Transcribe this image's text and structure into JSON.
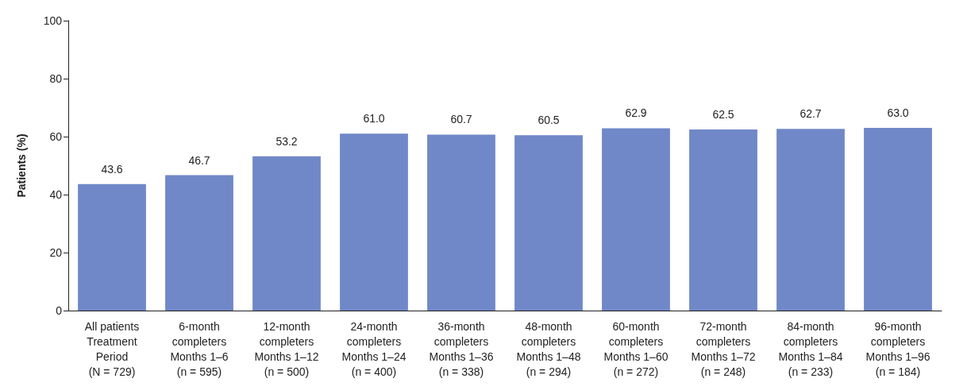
{
  "chart_data": {
    "type": "bar",
    "ylabel": "Patients (%)",
    "categories": [
      "All patients\nTreatment\nPeriod\n(N = 729)",
      "6-month\ncompleters\nMonths 1–6\n(n = 595)",
      "12-month\ncompleters\nMonths 1–12\n(n = 500)",
      "24-month\ncompleters\nMonths 1–24\n(n = 400)",
      "36-month\ncompleters\nMonths 1–36\n(n = 338)",
      "48-month\ncompleters\nMonths 1–48\n(n = 294)",
      "60-month\ncompleters\nMonths 1–60\n(n = 272)",
      "72-month\ncompleters\nMonths 1–72\n(n = 248)",
      "84-month\ncompleters\nMonths 1–84\n(n = 233)",
      "96-month\ncompleters\nMonths 1–96\n(n = 184)"
    ],
    "values": [
      43.6,
      46.7,
      53.2,
      61.0,
      60.7,
      60.5,
      62.9,
      62.5,
      62.7,
      63.0
    ],
    "value_labels": [
      "43.6",
      "46.7",
      "53.2",
      "61.0",
      "60.7",
      "60.5",
      "62.9",
      "62.5",
      "62.7",
      "63.0"
    ],
    "color": "#7088c8",
    "ylim": [
      0,
      100
    ],
    "yticks": [
      0,
      20,
      40,
      60,
      80,
      100
    ],
    "grid": false
  }
}
